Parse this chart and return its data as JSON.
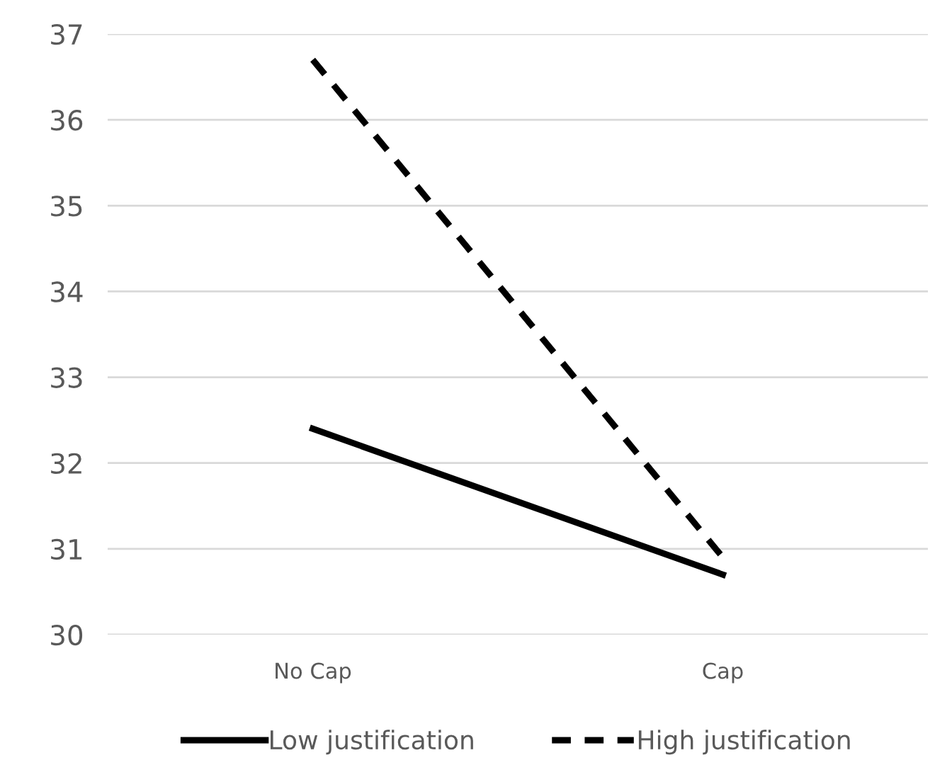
{
  "chart_data": {
    "type": "line",
    "categories": [
      "No Cap",
      "Cap"
    ],
    "series": [
      {
        "name": "Low justification",
        "color": "#000000",
        "line_style": "solid",
        "values": [
          32.4,
          30.7
        ]
      },
      {
        "name": "High justification",
        "color": "#000000",
        "line_style": "dashed",
        "values": [
          36.7,
          30.9
        ]
      }
    ],
    "ylim": [
      30,
      37
    ],
    "yticks": [
      30,
      31,
      32,
      33,
      34,
      35,
      36,
      37
    ],
    "grid": "y",
    "legend": "bottom",
    "marker": "none"
  }
}
